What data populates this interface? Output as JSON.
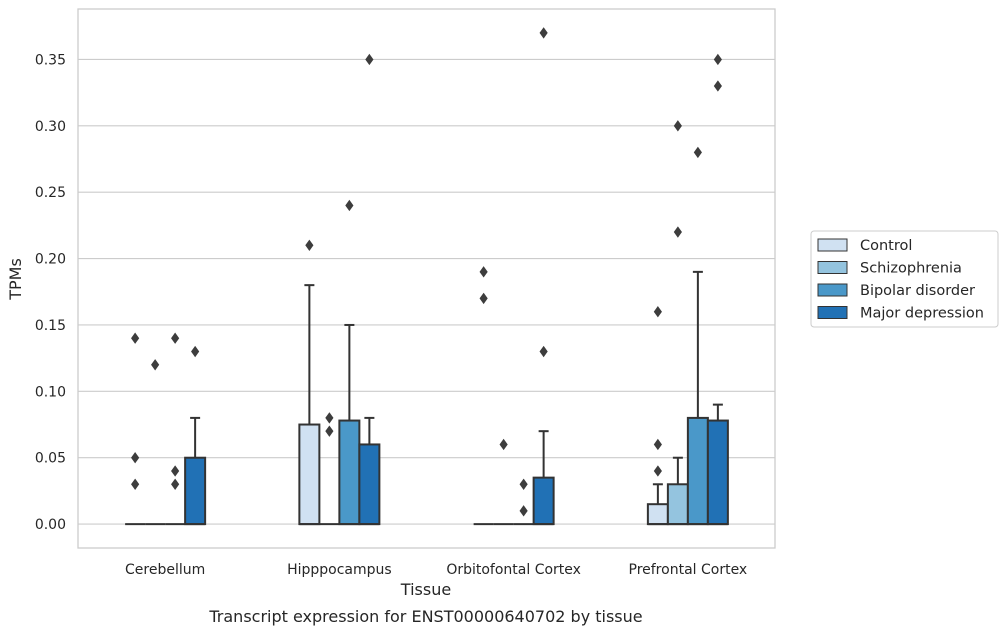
{
  "caption": "Transcript expression for ENST00000640702 by tissue",
  "chart_data": {
    "type": "boxplot",
    "xlabel": "Tissue",
    "ylabel": "TPMs",
    "ylim": [
      -0.018,
      0.388
    ],
    "yticks": [
      0.0,
      0.05,
      0.1,
      0.15,
      0.2,
      0.25,
      0.3,
      0.35
    ],
    "ytick_labels": [
      "0.00",
      "0.05",
      "0.10",
      "0.15",
      "0.20",
      "0.25",
      "0.30",
      "0.35"
    ],
    "grid": true,
    "legend_position": "right",
    "categories": [
      "Cerebellum",
      "Hipppocampus",
      "Orbitofontal Cortex",
      "Prefrontal Cortex"
    ],
    "series": [
      {
        "name": "Control",
        "color": "#d0e1f2",
        "boxes": [
          {
            "q1": 0.0,
            "median": 0.0,
            "q3": 0.0,
            "whisker_low": 0.0,
            "whisker_high": 0.0,
            "outliers": [
              0.14,
              0.05,
              0.03
            ]
          },
          {
            "q1": 0.0,
            "median": 0.0,
            "q3": 0.075,
            "whisker_low": 0.0,
            "whisker_high": 0.18,
            "outliers": [
              0.21
            ]
          },
          {
            "q1": 0.0,
            "median": 0.0,
            "q3": 0.0,
            "whisker_low": 0.0,
            "whisker_high": 0.0,
            "outliers": [
              0.19,
              0.17
            ]
          },
          {
            "q1": 0.0,
            "median": 0.0,
            "q3": 0.015,
            "whisker_low": 0.0,
            "whisker_high": 0.03,
            "outliers": [
              0.16,
              0.06,
              0.04
            ]
          }
        ]
      },
      {
        "name": "Schizophrenia",
        "color": "#94c4df",
        "boxes": [
          {
            "q1": 0.0,
            "median": 0.0,
            "q3": 0.0,
            "whisker_low": 0.0,
            "whisker_high": 0.0,
            "outliers": [
              0.12
            ]
          },
          {
            "q1": 0.0,
            "median": 0.0,
            "q3": 0.0,
            "whisker_low": 0.0,
            "whisker_high": 0.0,
            "outliers": [
              0.08,
              0.07
            ]
          },
          {
            "q1": 0.0,
            "median": 0.0,
            "q3": 0.0,
            "whisker_low": 0.0,
            "whisker_high": 0.0,
            "outliers": [
              0.06
            ]
          },
          {
            "q1": 0.0,
            "median": 0.0,
            "q3": 0.03,
            "whisker_low": 0.0,
            "whisker_high": 0.05,
            "outliers": [
              0.3,
              0.22
            ]
          }
        ]
      },
      {
        "name": "Bipolar disorder",
        "color": "#4a98c9",
        "boxes": [
          {
            "q1": 0.0,
            "median": 0.0,
            "q3": 0.0,
            "whisker_low": 0.0,
            "whisker_high": 0.0,
            "outliers": [
              0.14,
              0.04,
              0.03
            ]
          },
          {
            "q1": 0.0,
            "median": 0.0,
            "q3": 0.078,
            "whisker_low": 0.0,
            "whisker_high": 0.15,
            "outliers": [
              0.24
            ]
          },
          {
            "q1": 0.0,
            "median": 0.0,
            "q3": 0.0,
            "whisker_low": 0.0,
            "whisker_high": 0.0,
            "outliers": [
              0.03,
              0.01
            ]
          },
          {
            "q1": 0.0,
            "median": 0.0,
            "q3": 0.08,
            "whisker_low": 0.0,
            "whisker_high": 0.19,
            "outliers": [
              0.28
            ]
          }
        ]
      },
      {
        "name": "Major depression",
        "color": "#2171b5",
        "boxes": [
          {
            "q1": 0.0,
            "median": 0.0,
            "q3": 0.05,
            "whisker_low": 0.0,
            "whisker_high": 0.08,
            "outliers": [
              0.13
            ]
          },
          {
            "q1": 0.0,
            "median": 0.0,
            "q3": 0.06,
            "whisker_low": 0.0,
            "whisker_high": 0.08,
            "outliers": [
              0.35
            ]
          },
          {
            "q1": 0.0,
            "median": 0.0,
            "q3": 0.035,
            "whisker_low": 0.0,
            "whisker_high": 0.07,
            "outliers": [
              0.37,
              0.13
            ]
          },
          {
            "q1": 0.0,
            "median": 0.0,
            "q3": 0.078,
            "whisker_low": 0.0,
            "whisker_high": 0.09,
            "outliers": [
              0.35,
              0.33
            ]
          }
        ]
      }
    ]
  }
}
